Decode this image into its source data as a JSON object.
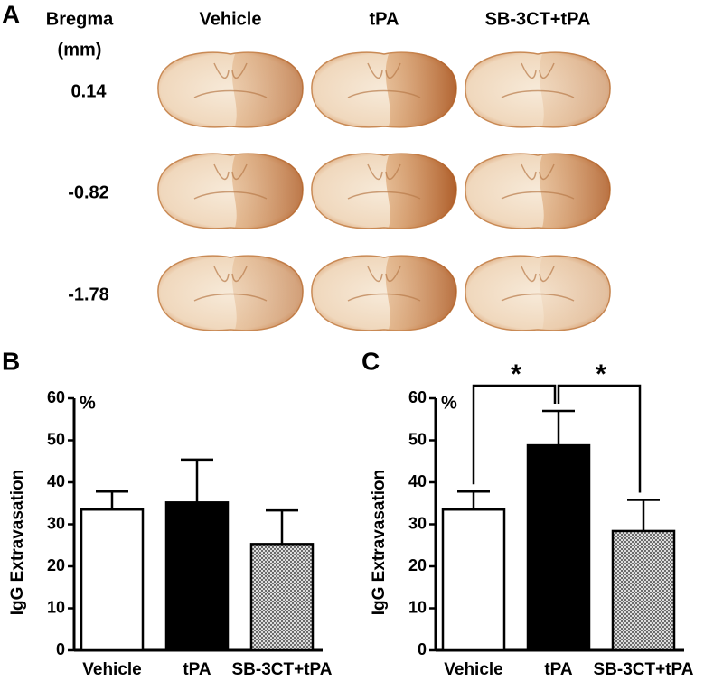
{
  "panel_a": {
    "panel_label": "A",
    "row_header": [
      "Bregma",
      "(mm)"
    ],
    "columns": [
      "Vehicle",
      "tPA",
      "SB-3CT+tPA"
    ],
    "rows": [
      "0.14",
      "-0.82",
      "-1.78"
    ]
  },
  "chart_data": [
    {
      "type": "bar",
      "panel_label": "B",
      "y_label": "IgG Extravasation",
      "unit_label": "%",
      "categories": [
        "Vehicle",
        "tPA",
        "SB-3CT+tPA"
      ],
      "values": [
        33.5,
        35.2,
        25.3
      ],
      "errors": [
        4.3,
        10.2,
        8.0
      ],
      "colors": [
        "#ffffff",
        "#000000",
        "#a8a8a8"
      ],
      "ylim": [
        0,
        60
      ],
      "yticks": [
        0,
        10,
        20,
        30,
        40,
        50,
        60
      ],
      "annotations": []
    },
    {
      "type": "bar",
      "panel_label": "C",
      "y_label": "IgG Extravasation",
      "unit_label": "%",
      "categories": [
        "Vehicle",
        "tPA",
        "SB-3CT+tPA"
      ],
      "values": [
        33.5,
        48.8,
        28.4
      ],
      "errors": [
        4.3,
        8.2,
        7.4
      ],
      "colors": [
        "#ffffff",
        "#000000",
        "#a8a8a8"
      ],
      "ylim": [
        0,
        60
      ],
      "yticks": [
        0,
        10,
        20,
        30,
        40,
        50,
        60
      ],
      "annotations": [
        "*",
        "*"
      ]
    }
  ]
}
